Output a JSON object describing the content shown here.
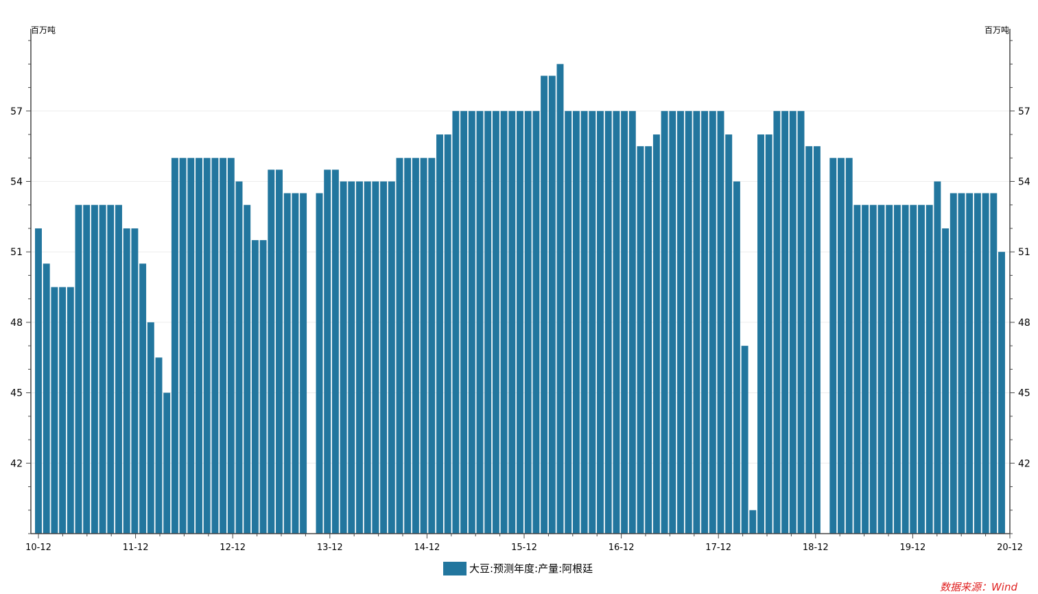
{
  "chart_data": {
    "type": "bar",
    "y_unit_left": "百万吨",
    "y_unit_right": "百万吨",
    "ylim": [
      39,
      60.5
    ],
    "y_ticks": [
      42,
      45,
      48,
      51,
      54,
      57
    ],
    "x_tick_labels": [
      "10-12",
      "11-12",
      "12-12",
      "13-12",
      "14-12",
      "15-12",
      "16-12",
      "17-12",
      "18-12",
      "19-12",
      "20-12"
    ],
    "bar_color": "#22769e",
    "grid": "horizontal",
    "legend_position": "bottom",
    "series": [
      {
        "name": "大豆:预测年度:产量:阿根廷",
        "values": [
          52,
          50.5,
          49.5,
          49.5,
          49.5,
          53,
          53,
          53,
          53,
          53,
          53,
          52,
          52,
          50.5,
          48,
          46.5,
          45,
          55,
          55,
          55,
          55,
          55,
          55,
          55,
          55,
          54,
          53,
          51.5,
          51.5,
          54.5,
          54.5,
          53.5,
          53.5,
          53.5,
          null,
          53.5,
          54.5,
          54.5,
          54,
          54,
          54,
          54,
          54,
          54,
          54,
          55,
          55,
          55,
          55,
          55,
          56,
          56,
          57,
          57,
          57,
          57,
          57,
          57,
          57,
          57,
          57,
          57,
          57,
          58.5,
          58.5,
          59,
          57,
          57,
          57,
          57,
          57,
          57,
          57,
          57,
          57,
          55.5,
          55.5,
          56,
          57,
          57,
          57,
          57,
          57,
          57,
          57,
          57,
          56,
          54,
          47,
          40,
          56,
          56,
          57,
          57,
          57,
          57,
          55.5,
          55.5,
          null,
          55,
          55,
          55,
          53,
          53,
          53,
          53,
          53,
          53,
          53,
          53,
          53,
          53,
          54,
          52,
          53.5,
          53.5,
          53.5,
          53.5,
          53.5,
          53.5,
          51
        ]
      }
    ]
  },
  "legend": {
    "label": "大豆:预测年度:产量:阿根廷"
  },
  "source": {
    "text": "数据来源：Wind"
  }
}
